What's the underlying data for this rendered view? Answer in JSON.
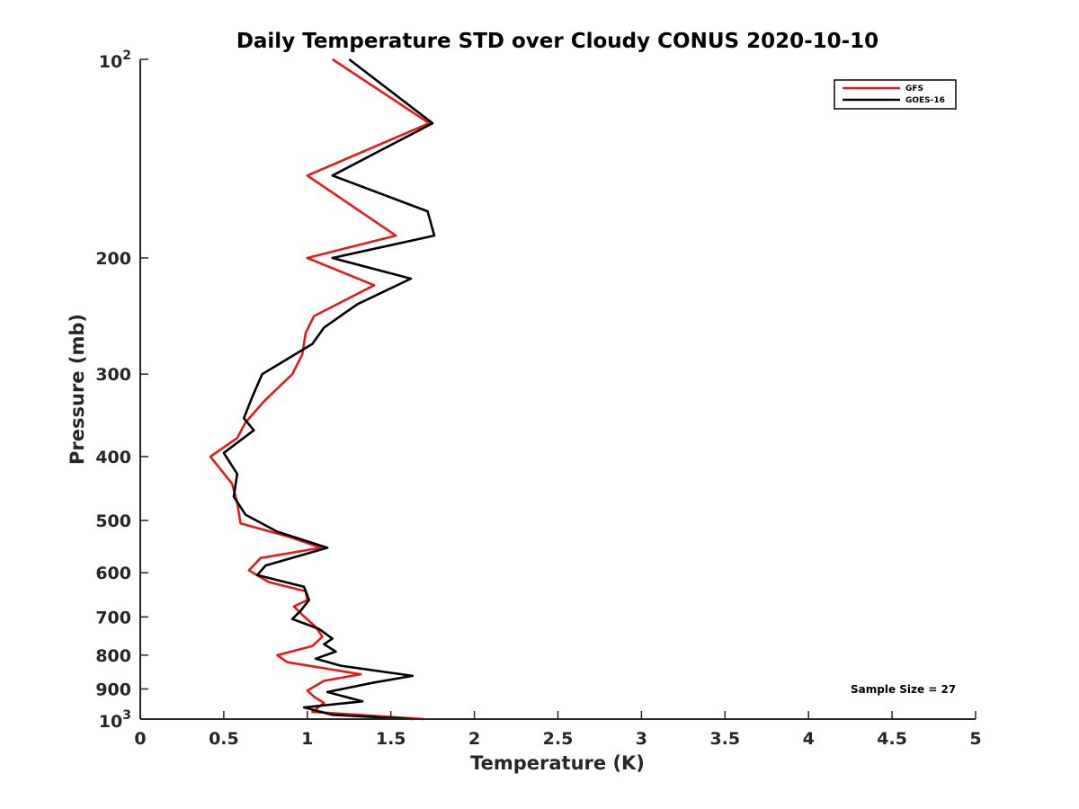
{
  "chart_data": {
    "type": "line",
    "title": "Daily Temperature STD over Cloudy CONUS 2020-10-10",
    "xlabel": "Temperature (K)",
    "ylabel": "Pressure (mb)",
    "xlim": [
      0,
      5
    ],
    "ylim": [
      100,
      1000
    ],
    "y_scale": "log",
    "y_reversed": true,
    "x_ticks": [
      "0",
      "0.5",
      "1",
      "1.5",
      "2",
      "2.5",
      "3",
      "3.5",
      "4",
      "4.5",
      "5"
    ],
    "y_ticks": [
      {
        "value": 200,
        "label": "200"
      },
      {
        "value": 300,
        "label": "300"
      },
      {
        "value": 400,
        "label": "400"
      },
      {
        "value": 500,
        "label": "500"
      },
      {
        "value": 600,
        "label": "600"
      },
      {
        "value": 700,
        "label": "700"
      },
      {
        "value": 800,
        "label": "800"
      },
      {
        "value": 900,
        "label": "900"
      }
    ],
    "y_ticks_pow": [
      {
        "value": 100,
        "base": "10",
        "exp": "2"
      },
      {
        "value": 1000,
        "base": "10",
        "exp": "3"
      }
    ],
    "legend_position": "top-right",
    "grid": false,
    "annotation": "Sample Size = 27",
    "series": [
      {
        "name": "GFS",
        "color": "#e31a1c",
        "points": [
          [
            1.15,
            100
          ],
          [
            1.73,
            125
          ],
          [
            1.0,
            150
          ],
          [
            1.53,
            185
          ],
          [
            1.0,
            200
          ],
          [
            1.4,
            220
          ],
          [
            1.04,
            245
          ],
          [
            0.99,
            260
          ],
          [
            0.97,
            280
          ],
          [
            0.91,
            300
          ],
          [
            0.74,
            330
          ],
          [
            0.63,
            355
          ],
          [
            0.58,
            375
          ],
          [
            0.42,
            400
          ],
          [
            0.55,
            440
          ],
          [
            0.58,
            470
          ],
          [
            0.6,
            505
          ],
          [
            0.9,
            530
          ],
          [
            1.08,
            550
          ],
          [
            0.72,
            570
          ],
          [
            0.65,
            595
          ],
          [
            0.77,
            620
          ],
          [
            0.99,
            640
          ],
          [
            1.0,
            660
          ],
          [
            0.92,
            675
          ],
          [
            0.97,
            695
          ],
          [
            1.05,
            725
          ],
          [
            1.09,
            750
          ],
          [
            1.03,
            775
          ],
          [
            0.82,
            800
          ],
          [
            0.88,
            820
          ],
          [
            1.32,
            855
          ],
          [
            1.1,
            875
          ],
          [
            1.0,
            905
          ],
          [
            1.04,
            925
          ],
          [
            1.1,
            945
          ],
          [
            1.03,
            975
          ],
          [
            1.7,
            1000
          ]
        ]
      },
      {
        "name": "GOES-16",
        "color": "#000000",
        "points": [
          [
            1.25,
            100
          ],
          [
            1.75,
            125
          ],
          [
            1.15,
            150
          ],
          [
            1.72,
            170
          ],
          [
            1.76,
            185
          ],
          [
            1.15,
            200
          ],
          [
            1.62,
            215
          ],
          [
            1.3,
            235
          ],
          [
            1.1,
            255
          ],
          [
            1.03,
            270
          ],
          [
            0.73,
            300
          ],
          [
            0.67,
            325
          ],
          [
            0.62,
            350
          ],
          [
            0.68,
            365
          ],
          [
            0.5,
            395
          ],
          [
            0.58,
            425
          ],
          [
            0.56,
            460
          ],
          [
            0.63,
            490
          ],
          [
            0.82,
            520
          ],
          [
            1.12,
            550
          ],
          [
            0.75,
            585
          ],
          [
            0.7,
            605
          ],
          [
            0.98,
            630
          ],
          [
            1.01,
            660
          ],
          [
            0.96,
            685
          ],
          [
            0.91,
            705
          ],
          [
            1.07,
            730
          ],
          [
            1.15,
            755
          ],
          [
            1.1,
            770
          ],
          [
            1.17,
            790
          ],
          [
            1.05,
            810
          ],
          [
            1.2,
            830
          ],
          [
            1.63,
            860
          ],
          [
            1.4,
            880
          ],
          [
            1.12,
            910
          ],
          [
            1.33,
            940
          ],
          [
            0.98,
            960
          ],
          [
            1.15,
            985
          ],
          [
            1.63,
            1000
          ]
        ]
      }
    ]
  }
}
